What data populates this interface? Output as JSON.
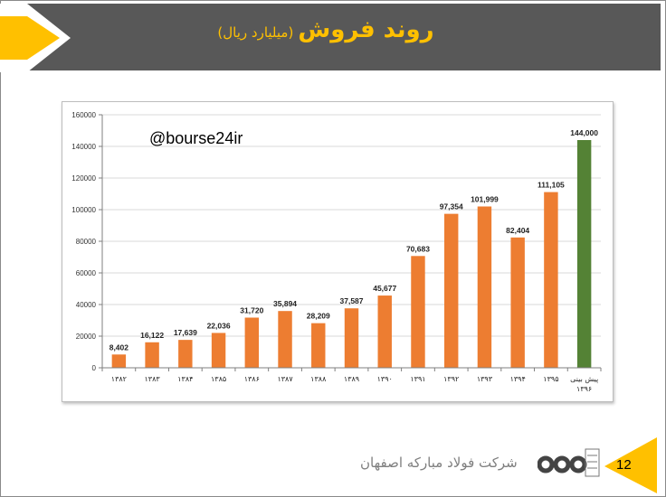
{
  "header": {
    "title": "روند فروش",
    "subtitle": "(میلیارد ریال)"
  },
  "watermark": "@bourse24ir",
  "footer": {
    "company": "شرکت فولاد مبارکه اصفهان",
    "page_number": "12"
  },
  "colors": {
    "header_bg": "#585858",
    "accent": "#ffc000",
    "bar_actual": "#ed7d31",
    "bar_forecast": "#548235"
  },
  "chart_data": {
    "type": "bar",
    "categories": [
      "۱۳۸۲",
      "۱۳۸۳",
      "۱۳۸۴",
      "۱۳۸۵",
      "۱۳۸۶",
      "۱۳۸۷",
      "۱۳۸۸",
      "۱۳۸۹",
      "۱۳۹۰",
      "۱۳۹۱",
      "۱۳۹۲",
      "۱۳۹۳",
      "۱۳۹۴",
      "۱۳۹۵",
      "پیش بینی ۱۳۹۶"
    ],
    "values": [
      8402,
      16122,
      17639,
      22036,
      31720,
      35894,
      28209,
      37587,
      45677,
      70683,
      97354,
      101999,
      82404,
      111105,
      144000
    ],
    "value_labels": [
      "8,402",
      "16,122",
      "17,639",
      "22,036",
      "31,720",
      "35,894",
      "28,209",
      "37,587",
      "45,677",
      "70,683",
      "97,354",
      "101,999",
      "82,404",
      "111,105",
      "144,000"
    ],
    "highlight_index": 14,
    "y_ticks": [
      "0",
      "20000",
      "40000",
      "60000",
      "80000",
      "100000",
      "120000",
      "140000",
      "160000"
    ],
    "ylim": [
      0,
      160000
    ],
    "grid": true,
    "legend": "none"
  }
}
